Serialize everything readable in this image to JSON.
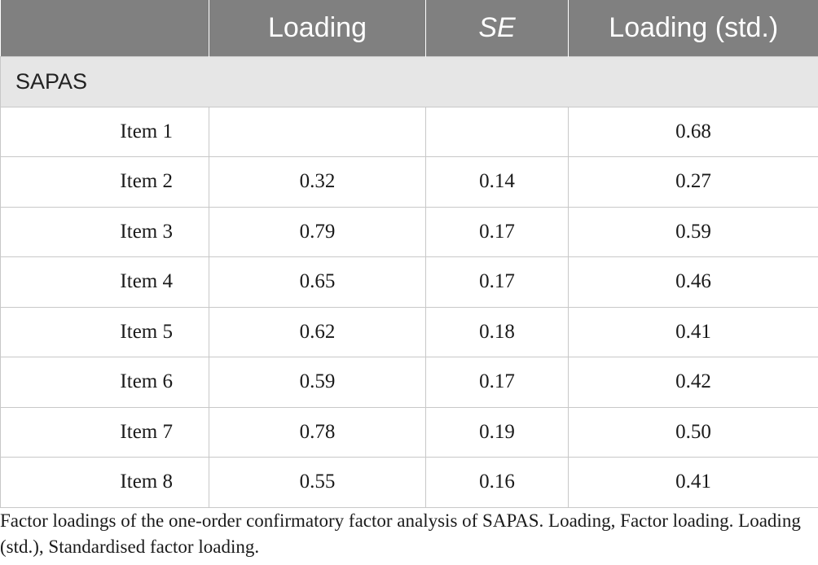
{
  "table": {
    "headers": [
      "",
      "Loading",
      "SE",
      "Loading (std.)"
    ],
    "section": "SAPAS",
    "rows": [
      {
        "item": "Item 1",
        "loading": "",
        "se": "",
        "std": "0.68"
      },
      {
        "item": "Item 2",
        "loading": "0.32",
        "se": "0.14",
        "std": "0.27"
      },
      {
        "item": "Item 3",
        "loading": "0.79",
        "se": "0.17",
        "std": "0.59"
      },
      {
        "item": "Item 4",
        "loading": "0.65",
        "se": "0.17",
        "std": "0.46"
      },
      {
        "item": "Item 5",
        "loading": "0.62",
        "se": "0.18",
        "std": "0.41"
      },
      {
        "item": "Item 6",
        "loading": "0.59",
        "se": "0.17",
        "std": "0.42"
      },
      {
        "item": "Item 7",
        "loading": "0.78",
        "se": "0.19",
        "std": "0.50"
      },
      {
        "item": "Item 8",
        "loading": "0.55",
        "se": "0.16",
        "std": "0.41"
      }
    ]
  },
  "footnote": "Factor loadings of the one-order confirmatory factor analysis of SAPAS. Loading, Factor loading. Loading (std.), Standardised factor loading.",
  "colors": {
    "header_bg": "#808080",
    "section_bg": "#e6e6e6",
    "border": "#c8c8c8"
  }
}
